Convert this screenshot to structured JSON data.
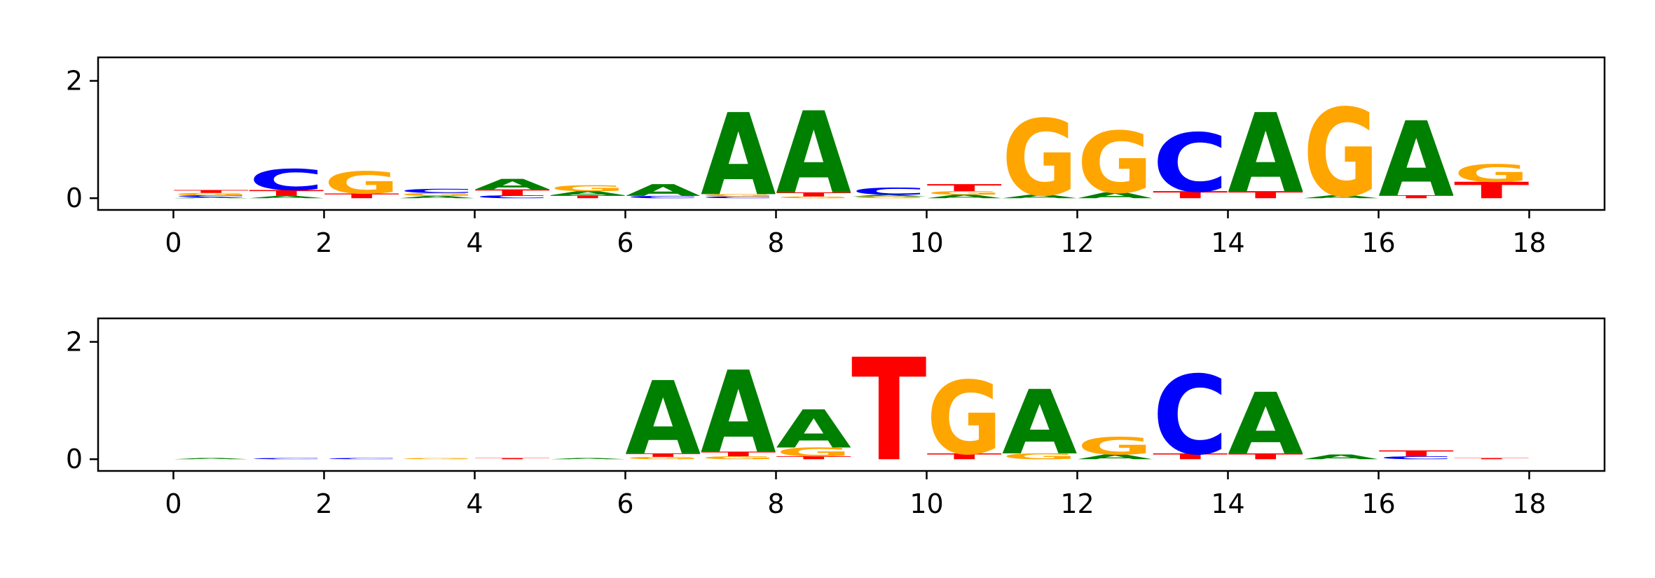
{
  "chart_data": [
    {
      "type": "sequence_logo",
      "title": "",
      "xlabel": "",
      "ylabel": "",
      "xlim": [
        -1,
        19
      ],
      "ylim": [
        -0.2,
        2.4
      ],
      "xticks": [
        "0",
        "2",
        "4",
        "6",
        "8",
        "10",
        "12",
        "14",
        "16",
        "18"
      ],
      "yticks": [
        "0",
        "2"
      ],
      "positions": [
        [
          {
            "base": "A",
            "h": 0.02
          },
          {
            "base": "C",
            "h": 0.03
          },
          {
            "base": "G",
            "h": 0.04
          },
          {
            "base": "T",
            "h": 0.05
          }
        ],
        [
          {
            "base": "A",
            "h": 0.04
          },
          {
            "base": "T",
            "h": 0.1
          },
          {
            "base": "C",
            "h": 0.36
          }
        ],
        [
          {
            "base": "T",
            "h": 0.08
          },
          {
            "base": "G",
            "h": 0.38
          }
        ],
        [
          {
            "base": "A",
            "h": 0.04
          },
          {
            "base": "G",
            "h": 0.05
          },
          {
            "base": "C",
            "h": 0.07
          }
        ],
        [
          {
            "base": "C",
            "h": 0.05
          },
          {
            "base": "T",
            "h": 0.1
          },
          {
            "base": "A",
            "h": 0.18
          }
        ],
        [
          {
            "base": "T",
            "h": 0.05
          },
          {
            "base": "A",
            "h": 0.07
          },
          {
            "base": "G",
            "h": 0.1
          }
        ],
        [
          {
            "base": "C",
            "h": 0.04
          },
          {
            "base": "A",
            "h": 0.2
          }
        ],
        [
          {
            "base": "C",
            "h": 0.03
          },
          {
            "base": "G",
            "h": 0.04
          },
          {
            "base": "A",
            "h": 1.4
          }
        ],
        [
          {
            "base": "G",
            "h": 0.03
          },
          {
            "base": "T",
            "h": 0.07
          },
          {
            "base": "A",
            "h": 1.4
          }
        ],
        [
          {
            "base": "G",
            "h": 0.03
          },
          {
            "base": "A",
            "h": 0.03
          },
          {
            "base": "C",
            "h": 0.12
          }
        ],
        [
          {
            "base": "A",
            "h": 0.06
          },
          {
            "base": "G",
            "h": 0.06
          },
          {
            "base": "T",
            "h": 0.12
          }
        ],
        [
          {
            "base": "A",
            "h": 0.06
          },
          {
            "base": "G",
            "h": 1.3
          }
        ],
        [
          {
            "base": "A",
            "h": 0.1
          },
          {
            "base": "G",
            "h": 1.05
          }
        ],
        [
          {
            "base": "T",
            "h": 0.12
          },
          {
            "base": "C",
            "h": 1.0
          }
        ],
        [
          {
            "base": "T",
            "h": 0.12
          },
          {
            "base": "A",
            "h": 1.35
          }
        ],
        [
          {
            "base": "A",
            "h": 0.05
          },
          {
            "base": "G",
            "h": 1.5
          }
        ],
        [
          {
            "base": "T",
            "h": 0.05
          },
          {
            "base": "A",
            "h": 1.28
          }
        ],
        [
          {
            "base": "T",
            "h": 0.28
          },
          {
            "base": "G",
            "h": 0.3
          }
        ]
      ]
    },
    {
      "type": "sequence_logo",
      "title": "",
      "xlabel": "",
      "ylabel": "",
      "xlim": [
        -1,
        19
      ],
      "ylim": [
        -0.2,
        2.4
      ],
      "xticks": [
        "0",
        "2",
        "4",
        "6",
        "8",
        "10",
        "12",
        "14",
        "16",
        "18"
      ],
      "yticks": [
        "0",
        "2"
      ],
      "positions": [
        [
          {
            "base": "A",
            "h": 0.02
          }
        ],
        [
          {
            "base": "C",
            "h": 0.02
          }
        ],
        [
          {
            "base": "C",
            "h": 0.02
          }
        ],
        [
          {
            "base": "G",
            "h": 0.02
          }
        ],
        [
          {
            "base": "T",
            "h": 0.02
          }
        ],
        [
          {
            "base": "A",
            "h": 0.02
          }
        ],
        [
          {
            "base": "G",
            "h": 0.04
          },
          {
            "base": "T",
            "h": 0.06
          },
          {
            "base": "A",
            "h": 1.25
          }
        ],
        [
          {
            "base": "G",
            "h": 0.05
          },
          {
            "base": "T",
            "h": 0.08
          },
          {
            "base": "A",
            "h": 1.4
          }
        ],
        [
          {
            "base": "T",
            "h": 0.05
          },
          {
            "base": "G",
            "h": 0.15
          },
          {
            "base": "A",
            "h": 0.65
          }
        ],
        [
          {
            "base": "T",
            "h": 1.75
          }
        ],
        [
          {
            "base": "T",
            "h": 0.1
          },
          {
            "base": "G",
            "h": 1.25
          }
        ],
        [
          {
            "base": "G",
            "h": 0.1
          },
          {
            "base": "A",
            "h": 1.1
          }
        ],
        [
          {
            "base": "A",
            "h": 0.08
          },
          {
            "base": "G",
            "h": 0.3
          }
        ],
        [
          {
            "base": "T",
            "h": 0.1
          },
          {
            "base": "C",
            "h": 1.35
          }
        ],
        [
          {
            "base": "T",
            "h": 0.1
          },
          {
            "base": "A",
            "h": 1.05
          }
        ],
        [
          {
            "base": "A",
            "h": 0.08
          }
        ],
        [
          {
            "base": "C",
            "h": 0.05
          },
          {
            "base": "T",
            "h": 0.1
          }
        ],
        [
          {
            "base": "T",
            "h": 0.02
          }
        ]
      ]
    }
  ],
  "colors": {
    "A": "#008000",
    "C": "#0000ff",
    "G": "#ffa500",
    "T": "#ff0000",
    "axis": "#000000",
    "background": "#ffffff"
  }
}
